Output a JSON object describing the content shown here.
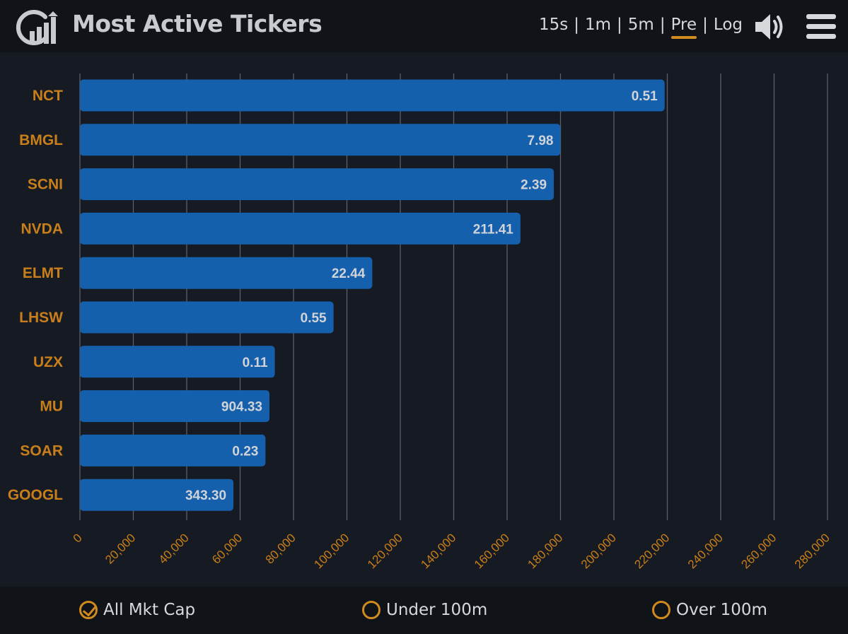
{
  "app": {
    "title": "Most Active Tickers"
  },
  "ranges": [
    {
      "label": "15s",
      "active": false
    },
    {
      "label": "1m",
      "active": false
    },
    {
      "label": "5m",
      "active": false
    },
    {
      "label": "Pre",
      "active": true
    },
    {
      "label": "Log",
      "active": false
    }
  ],
  "separator": "|",
  "icons": {
    "logo": "chart-logo-icon",
    "sound": "speaker-icon",
    "menu": "hamburger-menu-icon"
  },
  "colors": {
    "accent": "#d08a1d",
    "bar": "#1560ad",
    "label": "#c87f1b",
    "bar_text": "#d0d3d8"
  },
  "filters": [
    {
      "label": "All Mkt Cap",
      "checked": true
    },
    {
      "label": "Under 100m",
      "checked": false
    },
    {
      "label": "Over 100m",
      "checked": false
    }
  ],
  "chart_data": {
    "type": "bar",
    "orientation": "horizontal",
    "categories": [
      "NCT",
      "BMGL",
      "SCNI",
      "NVDA",
      "ELMT",
      "LHSW",
      "UZX",
      "MU",
      "SOAR",
      "GOOGL"
    ],
    "values": [
      219000,
      180000,
      177500,
      165000,
      109500,
      95000,
      73000,
      71000,
      69500,
      57500
    ],
    "bar_labels": [
      "0.51",
      "7.98",
      "2.39",
      "211.41",
      "22.44",
      "0.55",
      "0.11",
      "904.33",
      "0.23",
      "343.30"
    ],
    "xlim": [
      0,
      280000
    ],
    "xticks": [
      "0",
      "20,000",
      "40,000",
      "60,000",
      "80,000",
      "100,000",
      "120,000",
      "140,000",
      "160,000",
      "180,000",
      "200,000",
      "220,000",
      "240,000",
      "260,000",
      "280,000"
    ],
    "grid": true
  }
}
